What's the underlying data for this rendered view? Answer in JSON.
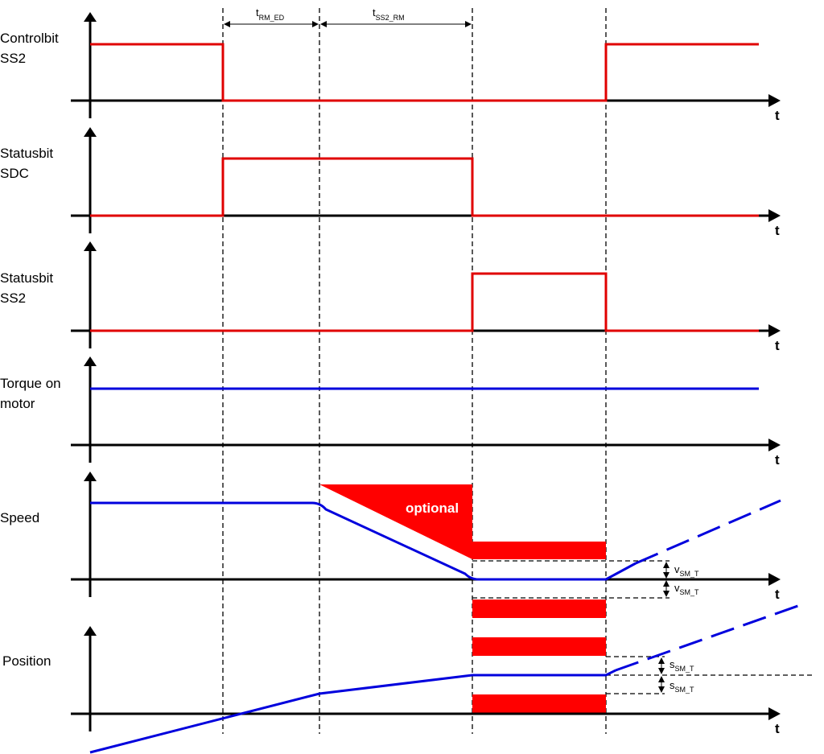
{
  "panels": [
    {
      "label": [
        "Controlbit",
        "SS2"
      ],
      "axis": "t"
    },
    {
      "label": [
        "Statusbit",
        "SDC"
      ],
      "axis": "t"
    },
    {
      "label": [
        "Statusbit",
        "SS2"
      ],
      "axis": "t"
    },
    {
      "label": [
        "Torque on",
        "motor"
      ],
      "axis": "t"
    },
    {
      "label": [
        "Speed"
      ],
      "axis": "t"
    },
    {
      "label": [
        "Position"
      ],
      "axis": "t"
    }
  ],
  "timings": [
    {
      "symbol": "t",
      "sub": "RM_ED"
    },
    {
      "symbol": "t",
      "sub": "SS2_RM"
    }
  ],
  "optional": "optional",
  "speed_tolerance": [
    {
      "symbol": "v",
      "sub": "SM_T"
    },
    {
      "symbol": "v",
      "sub": "SM_T"
    }
  ],
  "position_tolerance": [
    {
      "symbol": "s",
      "sub": "SM_T"
    },
    {
      "symbol": "s",
      "sub": "SM_T"
    }
  ]
}
